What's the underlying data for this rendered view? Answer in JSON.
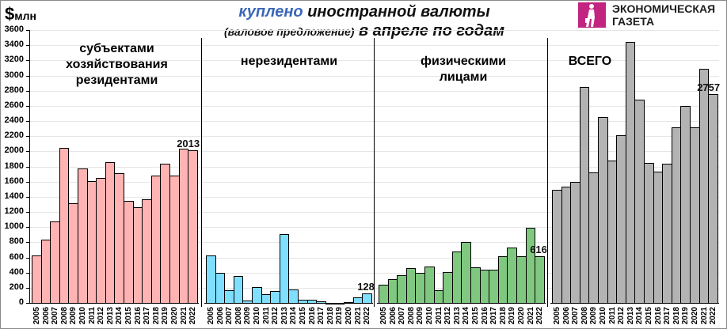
{
  "header": {
    "unit_symbol": "$",
    "unit_text": "млн",
    "title_accent": "куплено",
    "title_rest": " иностранной валюты",
    "subtitle_small": "(валовое предложение)",
    "subtitle_big": " в апреле по годам",
    "logo_line1": "ЭКОНОМИЧЕСКАЯ",
    "logo_line2": "ГАЗЕТА"
  },
  "colors": {
    "accent": "#3a67b8",
    "logo": "#c2247f",
    "residents": "#ffb3b3",
    "nonresidents": "#80dfff",
    "individuals": "#80c880",
    "total": "#b3b3b3"
  },
  "chart_data": {
    "type": "bar",
    "title": "куплено иностранной валюты (валовое предложение) в апреле по годам",
    "ylabel": "$млн",
    "xlabel": "",
    "ylim": [
      0,
      3600
    ],
    "yticks": [
      0,
      200,
      400,
      600,
      800,
      1000,
      1200,
      1400,
      1600,
      1800,
      2000,
      2200,
      2400,
      2600,
      2800,
      3000,
      3200,
      3400,
      3600
    ],
    "grid": true,
    "categories": [
      "2005",
      "2006",
      "2007",
      "2008",
      "2009",
      "2010",
      "2011",
      "2012",
      "2013",
      "2014",
      "2015",
      "2016",
      "2017",
      "2018",
      "2019",
      "2020",
      "2021",
      "2022"
    ],
    "series": [
      {
        "name": "субъектами хозяйствования резидентами",
        "color": "#ffb3b3",
        "values": [
          630,
          840,
          1080,
          2050,
          1310,
          1770,
          1610,
          1650,
          1860,
          1715,
          1350,
          1265,
          1370,
          1685,
          1840,
          1685,
          2030,
          2013
        ],
        "annotation": {
          "label": "2013",
          "index": 17
        }
      },
      {
        "name": "нерезидентами",
        "color": "#80dfff",
        "values": [
          630,
          400,
          165,
          350,
          30,
          205,
          115,
          155,
          905,
          175,
          40,
          38,
          25,
          5,
          5,
          10,
          75,
          128
        ],
        "annotation": {
          "label": "128",
          "index": 17
        }
      },
      {
        "name": "физическими лицами",
        "color": "#80c880",
        "values": [
          240,
          310,
          365,
          455,
          395,
          485,
          165,
          410,
          680,
          800,
          465,
          435,
          435,
          620,
          735,
          620,
          990,
          616
        ],
        "annotation": {
          "label": "616",
          "index": 17
        }
      },
      {
        "name": "ВСЕГО",
        "color": "#b3b3b3",
        "values": [
          1490,
          1530,
          1595,
          2850,
          1720,
          2450,
          1875,
          2210,
          3440,
          2680,
          1845,
          1730,
          1835,
          2315,
          2600,
          2315,
          3090,
          2757
        ],
        "annotation": {
          "label": "2757",
          "index": 17
        }
      }
    ]
  },
  "panels": [
    {
      "label_lines": [
        "субъектами",
        "хозяйствования",
        "резидентами"
      ]
    },
    {
      "label_lines": [
        "нерезидентами"
      ]
    },
    {
      "label_lines": [
        "физическими",
        "лицами"
      ]
    },
    {
      "label_lines": [
        "ВСЕГО"
      ]
    }
  ]
}
